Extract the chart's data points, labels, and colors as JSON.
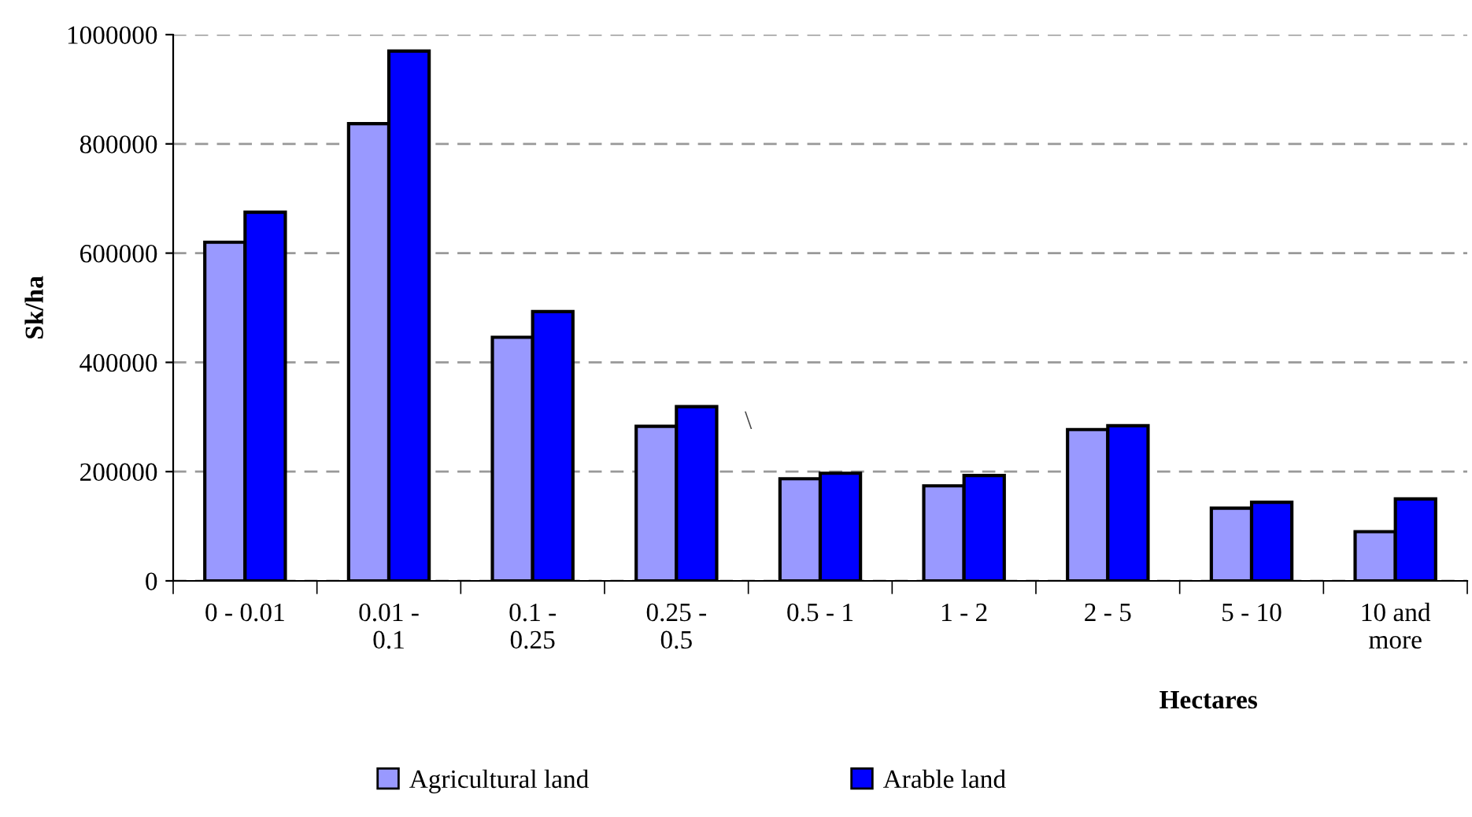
{
  "chart_data": {
    "type": "bar",
    "categories": [
      "0 - 0.01",
      "0.01 -\n0.1",
      "0.1 -\n0.25",
      "0.25 -\n0.5",
      "0.5 - 1",
      "1 - 2",
      "2 - 5",
      "5 - 10",
      "10 and\nmore"
    ],
    "series": [
      {
        "name": "Agricultural land",
        "color": "#9999ff",
        "values": [
          620000,
          837000,
          446000,
          283000,
          187000,
          174000,
          277000,
          133000,
          90000
        ]
      },
      {
        "name": "Arable land",
        "color": "#0000ff",
        "values": [
          675000,
          970000,
          493000,
          319000,
          197000,
          193000,
          284000,
          144000,
          150000
        ]
      }
    ],
    "ylabel": "Sk/ha",
    "xlabel": "Hectares",
    "ylim": [
      0,
      1000000
    ],
    "yticks": [
      0,
      200000,
      400000,
      600000,
      800000,
      1000000
    ],
    "grid": "y",
    "legend": "bottom",
    "annotations": [
      "\\"
    ]
  }
}
